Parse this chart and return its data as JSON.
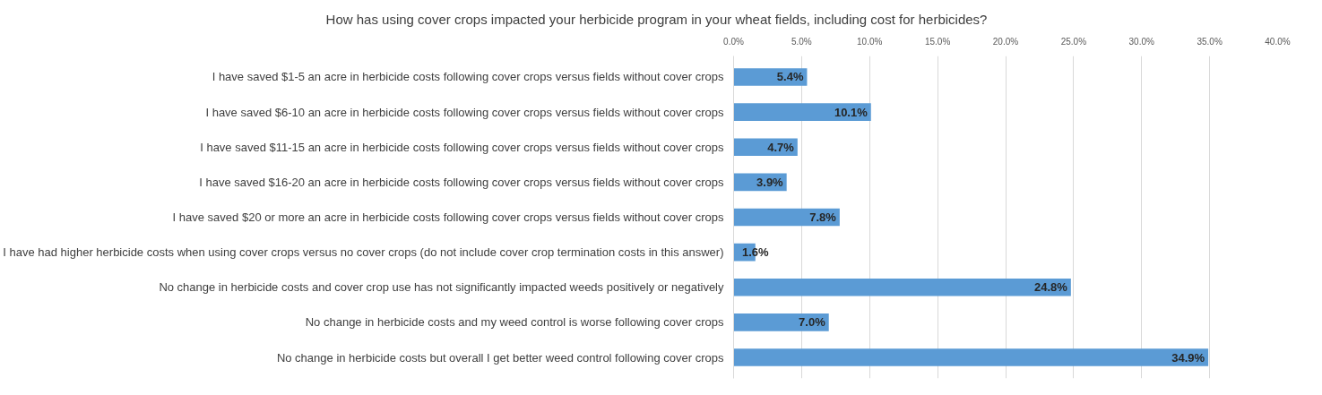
{
  "chart_data": {
    "type": "bar",
    "orientation": "horizontal",
    "title": "How has using cover crops impacted your herbicide program in your wheat fields, including cost for herbicides?",
    "categories": [
      "I have saved $1-5 an acre in herbicide costs following cover crops versus fields without cover crops",
      "I have saved $6-10 an acre in herbicide costs following cover crops versus fields without cover crops",
      "I have saved $11-15 an acre in herbicide costs following cover crops versus fields without cover crops",
      "I have saved $16-20 an acre in herbicide costs following cover crops versus fields without cover crops",
      "I have saved $20 or more an acre in herbicide costs following cover crops versus fields without cover crops",
      "I have had higher herbicide costs when using cover crops versus no cover crops (do not include cover crop termination costs in this answer)",
      "No change in herbicide costs and cover crop use has not significantly impacted weeds positively or negatively",
      "No change in herbicide costs and my weed control is worse following cover crops",
      "No change in herbicide costs but overall I get better weed control following cover crops"
    ],
    "values": [
      5.4,
      10.1,
      4.7,
      3.9,
      7.8,
      1.6,
      24.8,
      7.0,
      34.9
    ],
    "value_labels": [
      "5.4%",
      "10.1%",
      "4.7%",
      "3.9%",
      "7.8%",
      "1.6%",
      "24.8%",
      "7.0%",
      "34.9%"
    ],
    "color": "#5b9bd5",
    "xlim": [
      0,
      40
    ],
    "xticks": [
      {
        "value": 0,
        "label": "0.0%"
      },
      {
        "value": 5,
        "label": "5.0%"
      },
      {
        "value": 10,
        "label": "10.0%"
      },
      {
        "value": 15,
        "label": "15.0%"
      },
      {
        "value": 20,
        "label": "20.0%"
      },
      {
        "value": 25,
        "label": "25.0%"
      },
      {
        "value": 30,
        "label": "30.0%"
      },
      {
        "value": 35,
        "label": "35.0%"
      },
      {
        "value": 40,
        "label": "40.0%"
      }
    ],
    "grid": "x"
  }
}
